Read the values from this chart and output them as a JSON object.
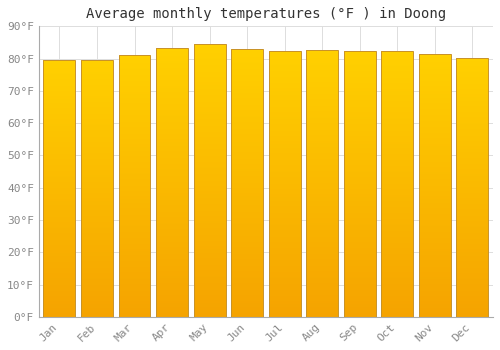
{
  "title": "Average monthly temperatures (°F ) in Doong",
  "months": [
    "Jan",
    "Feb",
    "Mar",
    "Apr",
    "May",
    "Jun",
    "Jul",
    "Aug",
    "Sep",
    "Oct",
    "Nov",
    "Dec"
  ],
  "values": [
    79.5,
    79.7,
    81.1,
    83.3,
    84.4,
    83.1,
    82.4,
    82.6,
    82.4,
    82.2,
    81.3,
    80.2
  ],
  "bar_color_top": "#FFD000",
  "bar_color_bottom": "#F5A300",
  "bar_edge_color": "#B8860B",
  "ylim": [
    0,
    90
  ],
  "yticks": [
    0,
    10,
    20,
    30,
    40,
    50,
    60,
    70,
    80,
    90
  ],
  "background_color": "#FFFFFF",
  "grid_color": "#DDDDDD",
  "title_fontsize": 10,
  "tick_fontsize": 8,
  "font_family": "monospace",
  "bar_width": 0.85
}
